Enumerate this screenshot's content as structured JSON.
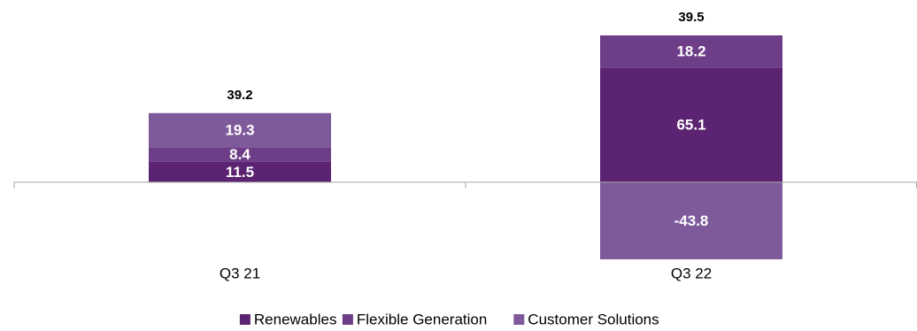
{
  "chart_data": {
    "type": "stacked-bar",
    "categories": [
      "Q3 21",
      "Q3 22"
    ],
    "series": [
      {
        "name": "Renewables",
        "color": "#5b2371",
        "values": [
          11.5,
          65.1
        ]
      },
      {
        "name": "Flexible Generation",
        "color": "#6e3d87",
        "values": [
          8.4,
          18.2
        ]
      },
      {
        "name": "Customer Solutions",
        "color": "#7f5a9a",
        "values": [
          19.3,
          -43.8
        ]
      }
    ],
    "totals": [
      39.2,
      39.5
    ],
    "legend": "bottom"
  }
}
